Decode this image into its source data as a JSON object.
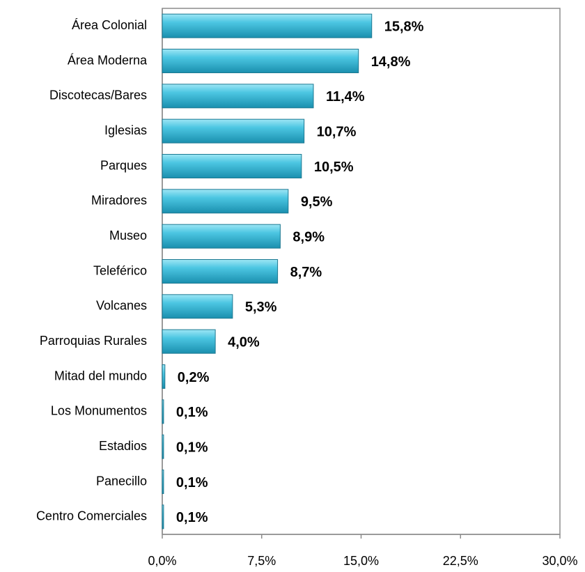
{
  "chart_data": {
    "type": "bar",
    "orientation": "horizontal",
    "categories": [
      "Área Colonial",
      "Área Moderna",
      "Discotecas/Bares",
      "Iglesias",
      "Parques",
      "Miradores",
      "Museo",
      "Teleférico",
      "Volcanes",
      "Parroquias Rurales",
      "Mitad del mundo",
      "Los Monumentos",
      "Estadios",
      "Panecillo",
      "Centro Comerciales"
    ],
    "values": [
      15.8,
      14.8,
      11.4,
      10.7,
      10.5,
      9.5,
      8.9,
      8.7,
      5.3,
      4.0,
      0.2,
      0.1,
      0.1,
      0.1,
      0.1
    ],
    "value_labels": [
      "15,8%",
      "14,8%",
      "11,4%",
      "10,7%",
      "10,5%",
      "9,5%",
      "8,9%",
      "8,7%",
      "5,3%",
      "4,0%",
      "0,2%",
      "0,1%",
      "0,1%",
      "0,1%",
      "0,1%"
    ],
    "color": "#31b4d4",
    "xlim": [
      0,
      30
    ],
    "xticks": [
      {
        "value": 0,
        "label": "0,0%"
      },
      {
        "value": 7.5,
        "label": "7,5%"
      },
      {
        "value": 15,
        "label": "15,0%"
      },
      {
        "value": 22.5,
        "label": "22,5%"
      },
      {
        "value": 30,
        "label": "30,0%"
      }
    ],
    "grid": false
  }
}
